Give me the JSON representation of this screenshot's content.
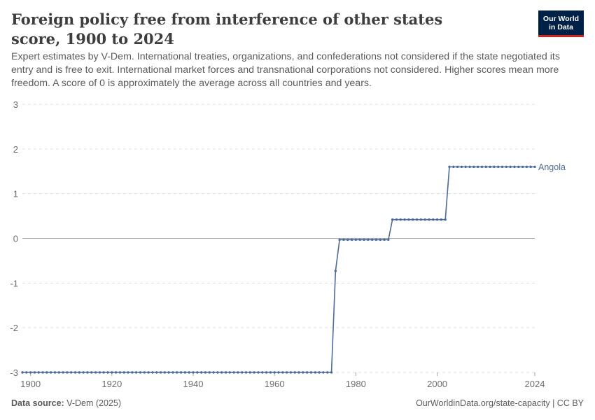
{
  "header": {
    "title": "Foreign policy free from interference of other states score, 1900 to 2024",
    "subtitle": "Expert estimates by V-Dem. International treaties, organizations, and confederations not considered if the state negotiated its entry and is free to exit. International market forces and transnational corporations not considered. Higher scores mean more freedom. A score of 0 is approximately the average across all countries and years.",
    "logo_line1": "Our World",
    "logo_line2": "in Data"
  },
  "footer": {
    "source_label": "Data source:",
    "source_value": "V-Dem (2025)",
    "url_license": "OurWorldinData.org/state-capacity | CC BY"
  },
  "colors": {
    "series": "#4c6a9c",
    "logo_bg": "#002147",
    "logo_accent": "#ce261e"
  },
  "chart_data": {
    "type": "line",
    "title": "Foreign policy free from interference of other states score, 1900 to 2024",
    "xlim": [
      1898,
      2024
    ],
    "ylim": [
      -3,
      3
    ],
    "x_ticks": [
      1900,
      1920,
      1940,
      1960,
      1980,
      2000,
      2024
    ],
    "y_ticks": [
      3,
      2,
      1,
      0,
      -1,
      -2,
      -3
    ],
    "grid": "horizontal dashed",
    "legend": "inline label at line end (right)",
    "series": [
      {
        "name": "Angola",
        "segments": [
          {
            "from": 1898,
            "to": 1974,
            "value": -3.0
          },
          {
            "from": 1975,
            "to": 1975,
            "value": -0.73
          },
          {
            "from": 1976,
            "to": 1988,
            "value": -0.03
          },
          {
            "from": 1989,
            "to": 2002,
            "value": 0.42
          },
          {
            "from": 2003,
            "to": 2024,
            "value": 1.6
          }
        ]
      }
    ]
  }
}
